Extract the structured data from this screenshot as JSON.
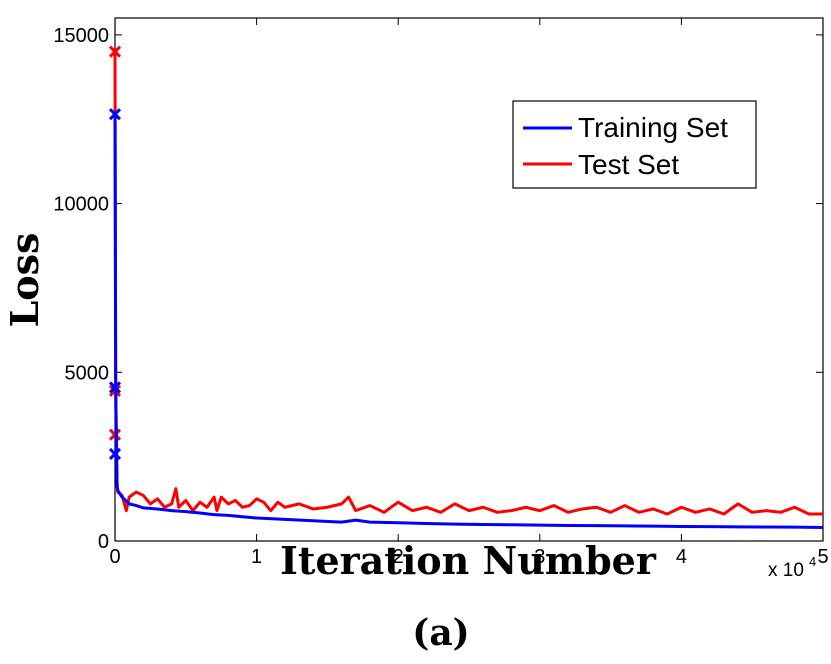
{
  "chart_data": {
    "type": "line",
    "title": "",
    "caption": "(a)",
    "xlabel": "Iteration Number",
    "ylabel": "Loss",
    "x_multiplier_label": "x 10",
    "x_multiplier_exponent": "4",
    "xlim": [
      0,
      5
    ],
    "ylim": [
      0,
      15500
    ],
    "x_ticks": [
      0,
      1,
      2,
      3,
      4,
      5
    ],
    "x_tick_labels": [
      "0",
      "1",
      "2",
      "3",
      "4",
      "5"
    ],
    "y_ticks": [
      0,
      5000,
      10000,
      15000
    ],
    "y_tick_labels": [
      "0",
      "5000",
      "10000",
      "15000"
    ],
    "legend_position": "top-right",
    "series": [
      {
        "name": "Training Set",
        "color": "#0000ff",
        "x": [
          0,
          0.005,
          0.01,
          0.015,
          0.02,
          0.05,
          0.1,
          0.15,
          0.2,
          0.3,
          0.4,
          0.5,
          0.6,
          0.7,
          0.8,
          0.9,
          1.0,
          1.2,
          1.4,
          1.6,
          1.7,
          1.8,
          2.0,
          2.2,
          2.4,
          2.6,
          2.8,
          3.0,
          3.2,
          3.4,
          3.6,
          3.8,
          4.0,
          4.2,
          4.4,
          4.6,
          4.8,
          5.0
        ],
        "values": [
          12650,
          4550,
          2580,
          1600,
          1500,
          1300,
          1100,
          1050,
          980,
          950,
          900,
          870,
          830,
          780,
          760,
          720,
          680,
          640,
          600,
          560,
          620,
          560,
          540,
          520,
          500,
          490,
          480,
          470,
          460,
          455,
          450,
          440,
          430,
          425,
          420,
          415,
          410,
          400
        ],
        "markers": [
          {
            "x": 0,
            "y": 12650
          },
          {
            "x": 0,
            "y": 4550
          },
          {
            "x": 0,
            "y": 2580
          }
        ]
      },
      {
        "name": "Test Set",
        "color": "#ff0000",
        "x": [
          0,
          0.005,
          0.01,
          0.015,
          0.02,
          0.05,
          0.08,
          0.1,
          0.15,
          0.2,
          0.25,
          0.3,
          0.35,
          0.4,
          0.43,
          0.45,
          0.5,
          0.55,
          0.6,
          0.65,
          0.7,
          0.72,
          0.75,
          0.8,
          0.85,
          0.9,
          0.95,
          1.0,
          1.05,
          1.1,
          1.15,
          1.2,
          1.3,
          1.4,
          1.5,
          1.6,
          1.65,
          1.7,
          1.8,
          1.9,
          2.0,
          2.1,
          2.2,
          2.3,
          2.4,
          2.5,
          2.6,
          2.7,
          2.8,
          2.9,
          3.0,
          3.1,
          3.2,
          3.3,
          3.4,
          3.5,
          3.6,
          3.7,
          3.8,
          3.9,
          4.0,
          4.1,
          4.2,
          4.3,
          4.4,
          4.5,
          4.6,
          4.7,
          4.8,
          4.9,
          5.0
        ],
        "values": [
          14500,
          4450,
          3150,
          1700,
          1450,
          1350,
          900,
          1300,
          1450,
          1350,
          1100,
          1250,
          1000,
          1100,
          1550,
          1000,
          1200,
          900,
          1150,
          1000,
          1300,
          900,
          1300,
          1100,
          1200,
          1000,
          1050,
          1250,
          1150,
          900,
          1150,
          1000,
          1100,
          950,
          1000,
          1100,
          1300,
          900,
          1050,
          850,
          1150,
          900,
          1000,
          850,
          1100,
          900,
          1000,
          850,
          900,
          1000,
          900,
          1050,
          850,
          950,
          1000,
          850,
          1050,
          850,
          950,
          800,
          1000,
          850,
          950,
          800,
          1100,
          850,
          900,
          850,
          1000,
          800,
          800
        ],
        "markers": [
          {
            "x": 0,
            "y": 14500
          },
          {
            "x": 0,
            "y": 4450
          },
          {
            "x": 0,
            "y": 3150
          }
        ]
      }
    ]
  }
}
